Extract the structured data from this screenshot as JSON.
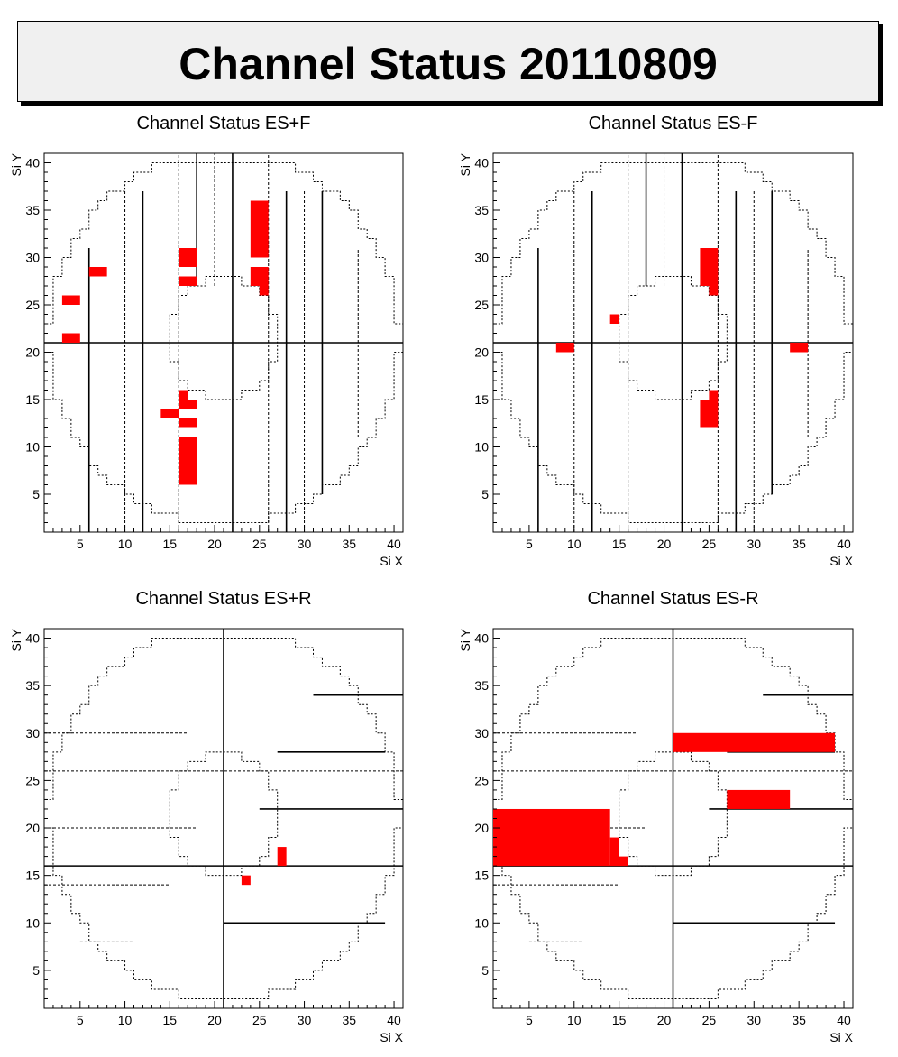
{
  "title": "Channel Status 20110809",
  "colors": {
    "bad": "#ff0000",
    "frame": "#000000",
    "background": "#ffffff",
    "title_bg": "#f0f0f0"
  },
  "chart_data": [
    {
      "type": "heatmap",
      "title": "Channel Status ES+F",
      "xlabel": "Si X",
      "ylabel": "Si Y",
      "xlim": [
        1,
        41
      ],
      "ylim": [
        1,
        41
      ],
      "xticks": [
        5,
        10,
        15,
        20,
        25,
        30,
        35,
        40
      ],
      "yticks": [
        5,
        10,
        15,
        20,
        25,
        30,
        35,
        40
      ],
      "bad_channels": [
        {
          "x": [
            24,
            26
          ],
          "y": [
            30,
            36
          ]
        },
        {
          "x": [
            24,
            26
          ],
          "y": [
            27,
            29
          ]
        },
        {
          "x": [
            25,
            26
          ],
          "y": [
            26,
            27
          ]
        },
        {
          "x": [
            16,
            18
          ],
          "y": [
            29,
            31
          ]
        },
        {
          "x": [
            16,
            18
          ],
          "y": [
            27,
            28
          ]
        },
        {
          "x": [
            6,
            8
          ],
          "y": [
            28,
            29
          ]
        },
        {
          "x": [
            3,
            5
          ],
          "y": [
            25,
            26
          ]
        },
        {
          "x": [
            3,
            5
          ],
          "y": [
            21,
            22
          ]
        },
        {
          "x": [
            16,
            17
          ],
          "y": [
            15,
            16
          ]
        },
        {
          "x": [
            16,
            18
          ],
          "y": [
            14,
            15
          ]
        },
        {
          "x": [
            14,
            16
          ],
          "y": [
            13,
            14
          ]
        },
        {
          "x": [
            16,
            18
          ],
          "y": [
            12,
            13
          ]
        },
        {
          "x": [
            16,
            18
          ],
          "y": [
            6,
            11
          ]
        }
      ]
    },
    {
      "type": "heatmap",
      "title": "Channel Status ES-F",
      "xlabel": "Si X",
      "ylabel": "Si Y",
      "xlim": [
        1,
        41
      ],
      "ylim": [
        1,
        41
      ],
      "xticks": [
        5,
        10,
        15,
        20,
        25,
        30,
        35,
        40
      ],
      "yticks": [
        5,
        10,
        15,
        20,
        25,
        30,
        35,
        40
      ],
      "bad_channels": [
        {
          "x": [
            24,
            26
          ],
          "y": [
            27,
            31
          ]
        },
        {
          "x": [
            25,
            26
          ],
          "y": [
            26,
            27
          ]
        },
        {
          "x": [
            14,
            15
          ],
          "y": [
            23,
            24
          ]
        },
        {
          "x": [
            8,
            10
          ],
          "y": [
            20,
            21
          ]
        },
        {
          "x": [
            34,
            36
          ],
          "y": [
            20,
            21
          ]
        },
        {
          "x": [
            25,
            26
          ],
          "y": [
            15,
            16
          ]
        },
        {
          "x": [
            24,
            26
          ],
          "y": [
            12,
            15
          ]
        }
      ]
    },
    {
      "type": "heatmap",
      "title": "Channel Status ES+R",
      "xlabel": "Si X",
      "ylabel": "Si Y",
      "xlim": [
        1,
        41
      ],
      "ylim": [
        1,
        41
      ],
      "xticks": [
        5,
        10,
        15,
        20,
        25,
        30,
        35,
        40
      ],
      "yticks": [
        5,
        10,
        15,
        20,
        25,
        30,
        35,
        40
      ],
      "bad_channels": [
        {
          "x": [
            27,
            28
          ],
          "y": [
            16,
            18
          ]
        },
        {
          "x": [
            23,
            24
          ],
          "y": [
            14,
            15
          ]
        }
      ]
    },
    {
      "type": "heatmap",
      "title": "Channel Status ES-R",
      "xlabel": "Si X",
      "ylabel": "Si Y",
      "xlim": [
        1,
        41
      ],
      "ylim": [
        1,
        41
      ],
      "xticks": [
        5,
        10,
        15,
        20,
        25,
        30,
        35,
        40
      ],
      "yticks": [
        5,
        10,
        15,
        20,
        25,
        30,
        35,
        40
      ],
      "bad_channels": [
        {
          "x": [
            21,
            39
          ],
          "y": [
            28,
            30
          ]
        },
        {
          "x": [
            27,
            34
          ],
          "y": [
            22,
            24
          ]
        },
        {
          "x": [
            1,
            14
          ],
          "y": [
            16,
            22
          ]
        },
        {
          "x": [
            14,
            15
          ],
          "y": [
            16,
            19
          ]
        },
        {
          "x": [
            15,
            16
          ],
          "y": [
            16,
            17
          ]
        }
      ]
    }
  ]
}
